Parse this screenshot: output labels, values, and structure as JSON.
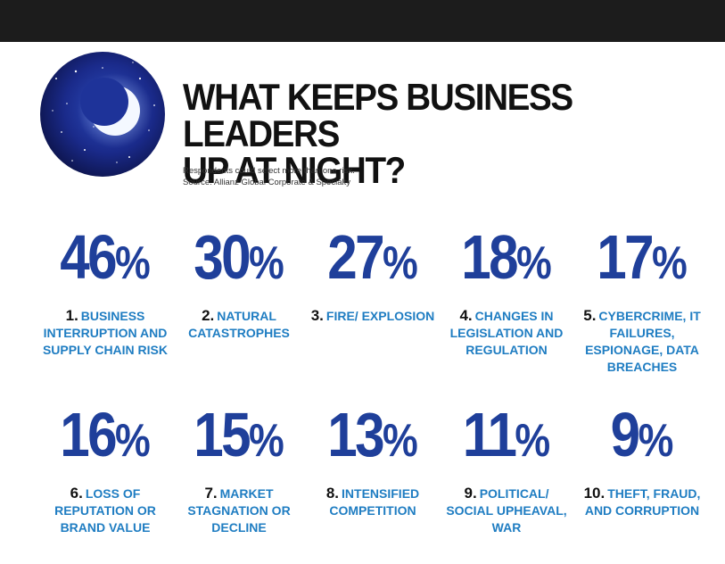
{
  "title_lines": [
    "WHAT KEEPS BUSINESS LEADERS",
    "UP AT NIGHT?"
  ],
  "note": "Respondents could select more than one risk.",
  "source": "Source: Allianz Global Corporate & Specialty",
  "colors": {
    "value": "#1f3f9a",
    "label": "#1f7dc2",
    "rank": "#111111",
    "topbar": "#1c1c1c"
  },
  "moon_image": "crescent-moon-night-sky",
  "chart_data": {
    "type": "table",
    "rows": [
      {
        "rank": "1.",
        "value": 46,
        "value_label": "46",
        "label": "BUSINESS INTERRUPTION AND SUPPLY CHAIN RISK"
      },
      {
        "rank": "2.",
        "value": 30,
        "value_label": "30",
        "label": "NATURAL CATASTROPHES"
      },
      {
        "rank": "3.",
        "value": 27,
        "value_label": "27",
        "label": "FIRE/ EXPLOSION"
      },
      {
        "rank": "4.",
        "value": 18,
        "value_label": "18",
        "label": "CHANGES IN LEGISLATION AND REGULATION"
      },
      {
        "rank": "5.",
        "value": 17,
        "value_label": "17",
        "label": "CYBERCRIME, IT FAILURES, ESPIONAGE, DATA BREACHES"
      },
      {
        "rank": "6.",
        "value": 16,
        "value_label": "16",
        "label": "LOSS OF REPUTATION OR BRAND VALUE"
      },
      {
        "rank": "7.",
        "value": 15,
        "value_label": "15",
        "label": "MARKET STAGNATION OR DECLINE"
      },
      {
        "rank": "8.",
        "value": 13,
        "value_label": "13",
        "label": "INTENSIFIED COMPETITION"
      },
      {
        "rank": "9.",
        "value": 11,
        "value_label": "11",
        "label": "POLITICAL/ SOCIAL UPHEAVAL, WAR"
      },
      {
        "rank": "10.",
        "value": 9,
        "value_label": "9",
        "label": "THEFT, FRAUD, AND CORRUPTION"
      }
    ],
    "unit": "%"
  }
}
